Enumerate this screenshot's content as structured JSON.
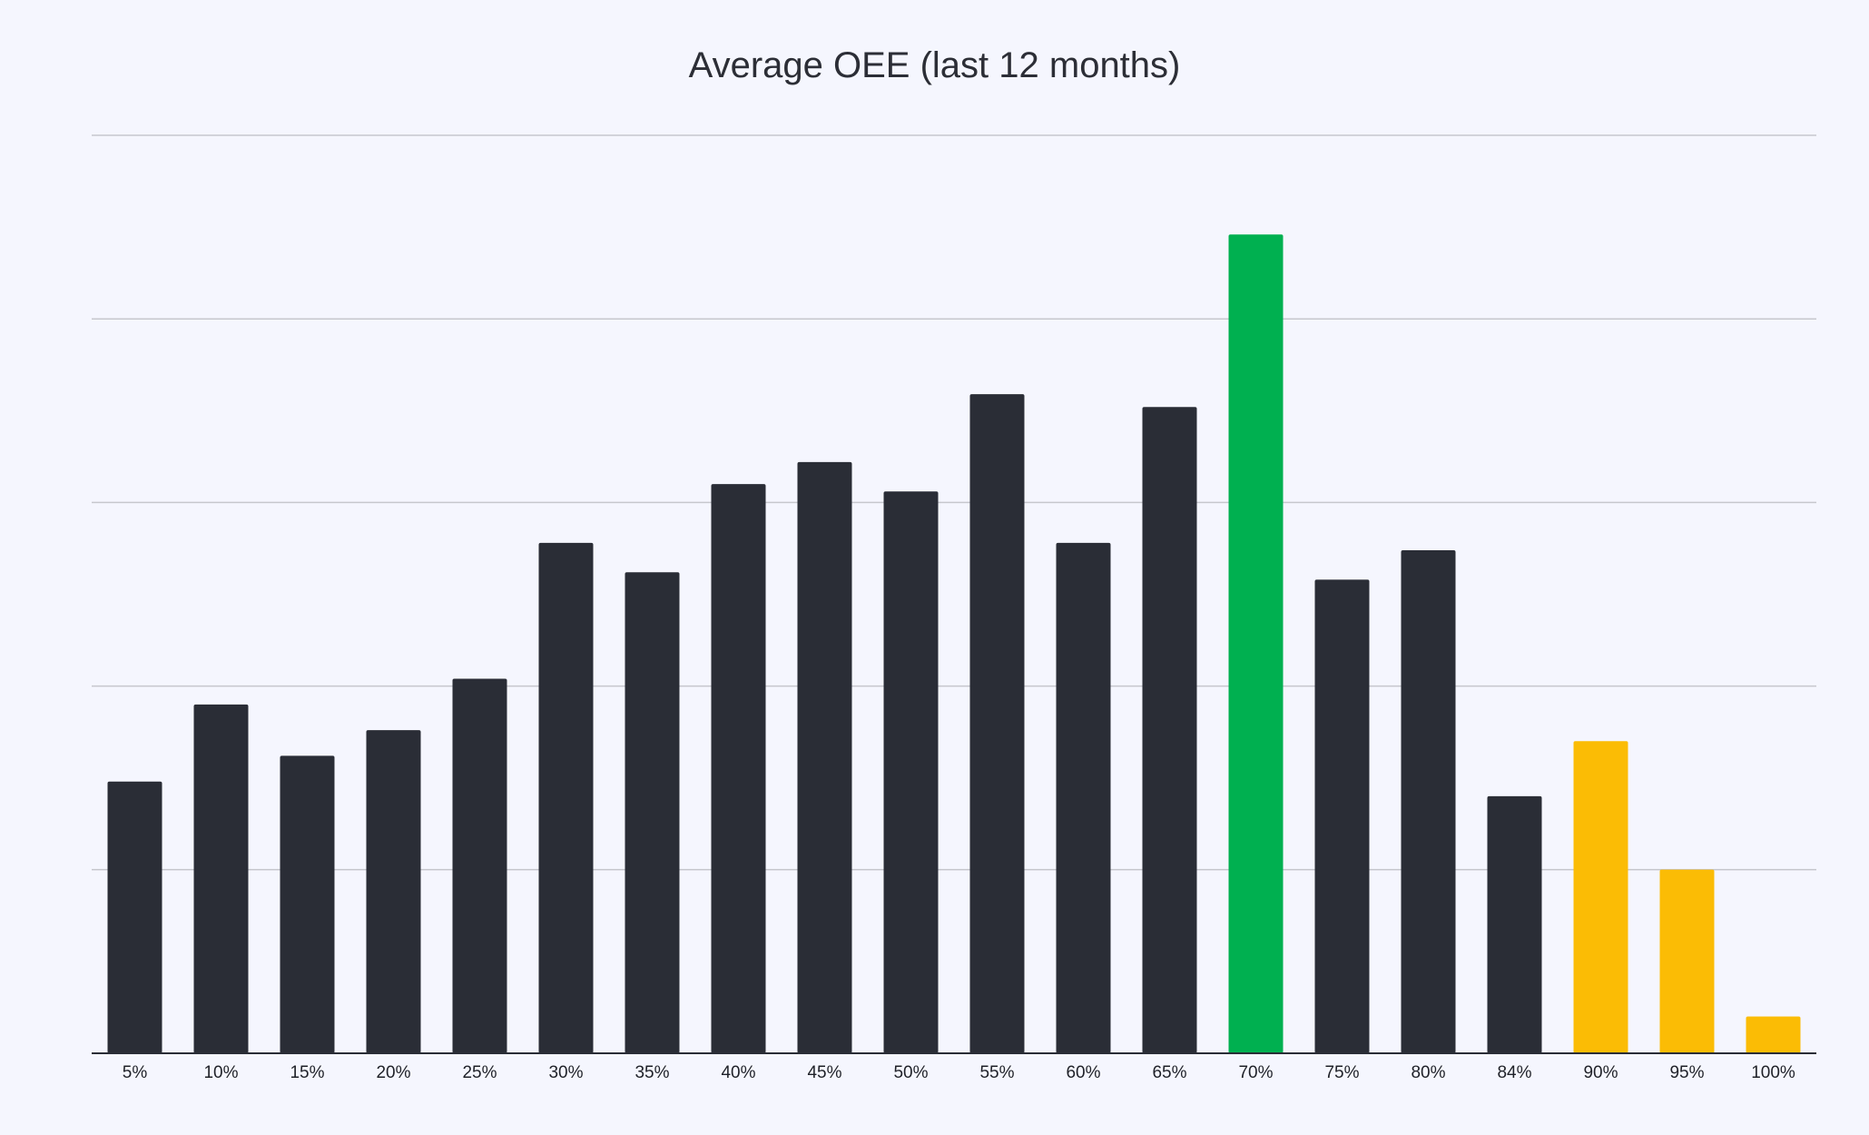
{
  "chart_data": {
    "type": "bar",
    "title": "Average OEE (last 12 months)",
    "xlabel": "",
    "ylabel": "",
    "categories": [
      "5%",
      "10%",
      "15%",
      "20%",
      "25%",
      "30%",
      "35%",
      "40%",
      "45%",
      "50%",
      "55%",
      "60%",
      "65%",
      "70%",
      "75%",
      "80%",
      "84%",
      "90%",
      "95%",
      "100%"
    ],
    "values": [
      1.48,
      1.9,
      1.62,
      1.76,
      2.04,
      2.78,
      2.62,
      3.1,
      3.22,
      3.06,
      3.59,
      2.78,
      3.52,
      4.46,
      2.58,
      2.74,
      1.4,
      1.7,
      1.0,
      0.2
    ],
    "ylim": [
      0,
      5
    ],
    "gridlines": [
      1,
      2,
      3,
      4,
      5
    ],
    "grid": true,
    "legend": false,
    "colors": {
      "default": "#2a2d36",
      "highlight": "#00b050",
      "warning": "#fbbc05",
      "grid": "#c6c7cd",
      "axis": "#2a2d36",
      "background": "#f5f6fe"
    },
    "bar_colors": [
      "default",
      "default",
      "default",
      "default",
      "default",
      "default",
      "default",
      "default",
      "default",
      "default",
      "default",
      "default",
      "default",
      "highlight",
      "default",
      "default",
      "default",
      "warning",
      "warning",
      "warning"
    ]
  }
}
